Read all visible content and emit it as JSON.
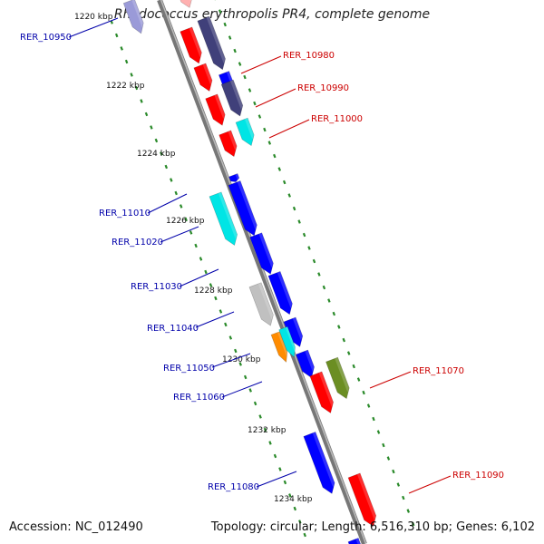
{
  "title": "Rhodococcus erythropolis PR4, complete genome",
  "accession_text": "Accession: NC_012490",
  "summary_text": "Topology: circular; Length: 6,516,310 bp; Genes: 6,102",
  "colors": {
    "backbone": "#888888",
    "forward_label": "#cc0000",
    "reverse_label": "#0000aa",
    "tick_dots": "#2a8a2a",
    "red": "#ff0000",
    "navy": "#40407a",
    "blue": "#0000ff",
    "cyan": "#00e5e5",
    "gray": "#c0c0c0",
    "orange": "#ff8c00",
    "olive": "#6b8e23"
  },
  "ticks": [
    {
      "label": "1220 kbp",
      "kbp": 1220
    },
    {
      "label": "1222 kbp",
      "kbp": 1222
    },
    {
      "label": "1224 kbp",
      "kbp": 1224
    },
    {
      "label": "1226 kbp",
      "kbp": 1226
    },
    {
      "label": "1228 kbp",
      "kbp": 1228
    },
    {
      "label": "1230 kbp",
      "kbp": 1230
    },
    {
      "label": "1232 kbp",
      "kbp": 1232
    },
    {
      "label": "1234 kbp",
      "kbp": 1234
    }
  ],
  "gene_labels": [
    {
      "text": "RER_10950",
      "strand": "reverse"
    },
    {
      "text": "RER_10980",
      "strand": "forward"
    },
    {
      "text": "RER_10990",
      "strand": "forward"
    },
    {
      "text": "RER_11000",
      "strand": "forward"
    },
    {
      "text": "RER_11010",
      "strand": "reverse"
    },
    {
      "text": "RER_11020",
      "strand": "reverse"
    },
    {
      "text": "RER_11030",
      "strand": "reverse"
    },
    {
      "text": "RER_11040",
      "strand": "reverse"
    },
    {
      "text": "RER_11050",
      "strand": "reverse"
    },
    {
      "text": "RER_11060",
      "strand": "reverse"
    },
    {
      "text": "RER_11070",
      "strand": "forward"
    },
    {
      "text": "RER_11080",
      "strand": "reverse"
    },
    {
      "text": "RER_11090",
      "strand": "forward"
    }
  ]
}
